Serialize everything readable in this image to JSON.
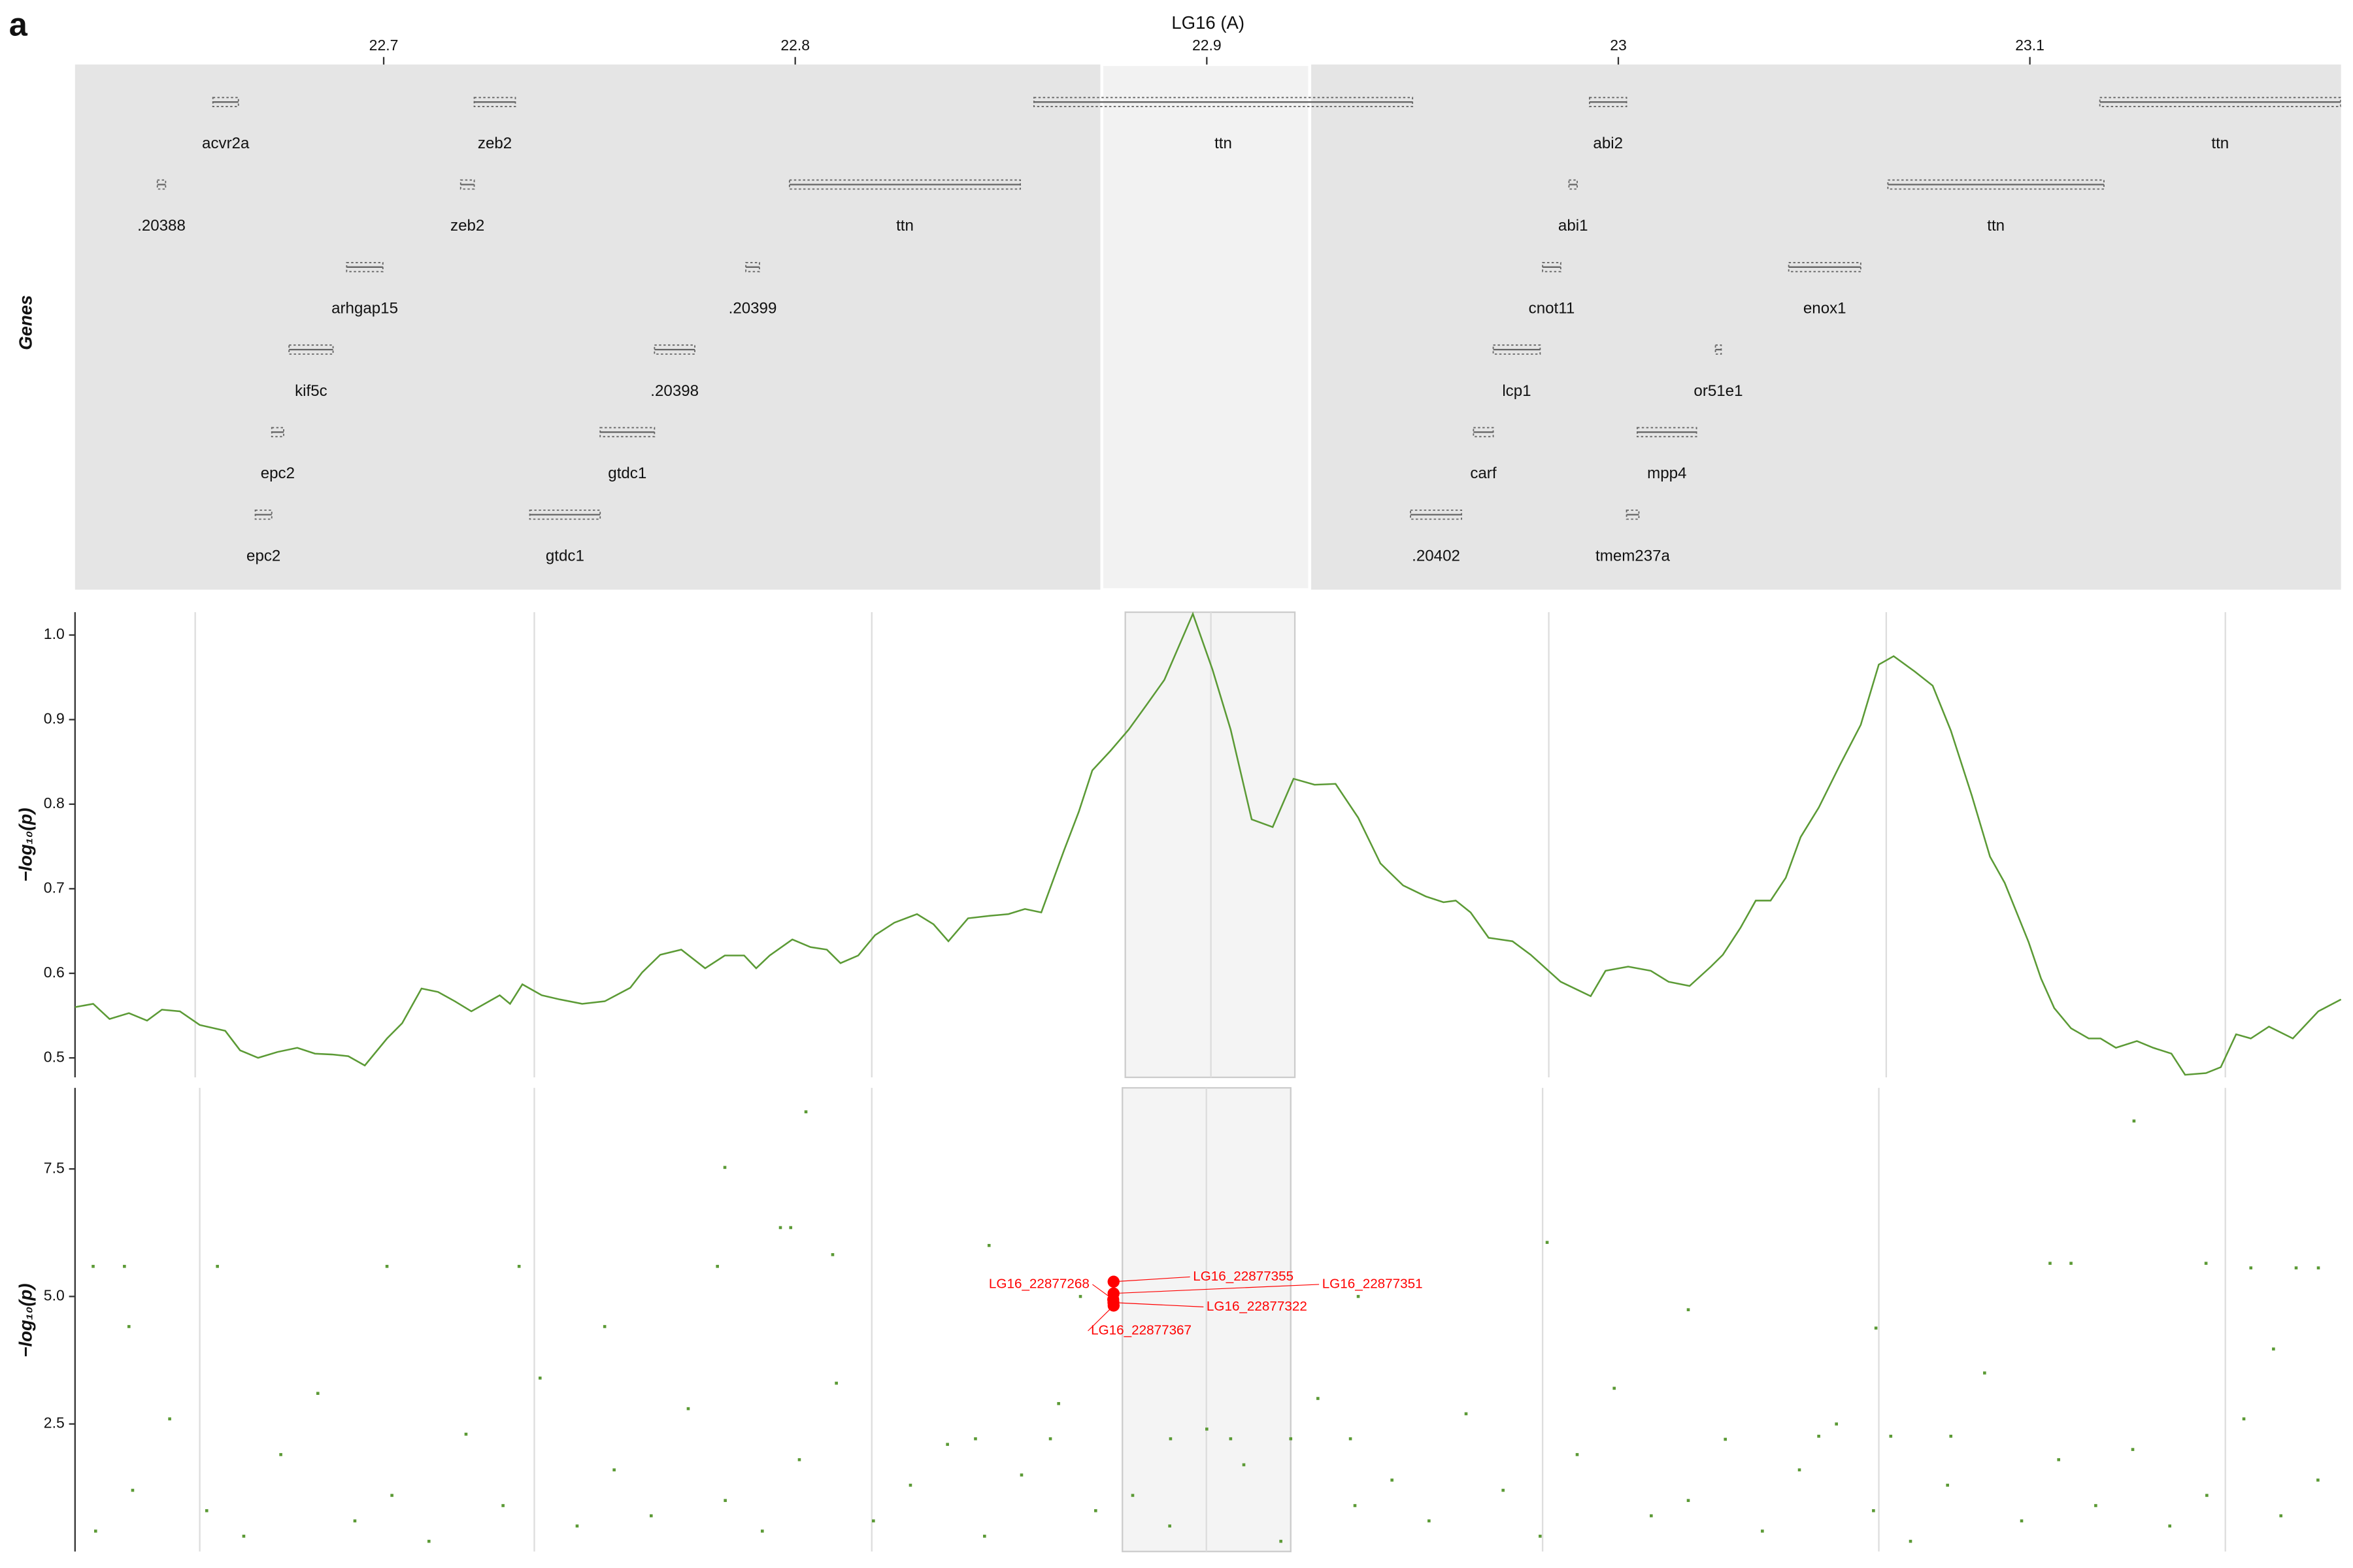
{
  "figure_label": "a",
  "chart_data": [
    {
      "type": "gene-track",
      "title": "LG16 (A)",
      "ylabel": "Genes",
      "xlim": [
        22.625,
        23.1756
      ],
      "xticks": [
        22.7,
        22.8,
        22.9,
        23,
        23.1
      ],
      "highlight": [
        22.8745,
        22.925
      ],
      "color": "#666666",
      "genes": [
        {
          "name": "acvr2a",
          "start": 22.6585,
          "end": 22.6647,
          "row": 0
        },
        {
          "name": "zeb2",
          "start": 22.722,
          "end": 22.732,
          "row": 0
        },
        {
          "name": "ttn",
          "start": 22.858,
          "end": 22.95,
          "row": 0
        },
        {
          "name": "abi2",
          "start": 22.993,
          "end": 23.002,
          "row": 0
        },
        {
          "name": "ttn",
          "start": 23.117,
          "end": 23.1755,
          "row": 0
        },
        {
          "name": ".20388",
          "start": 22.645,
          "end": 22.647,
          "row": 1
        },
        {
          "name": "zeb2",
          "start": 22.7187,
          "end": 22.722,
          "row": 1
        },
        {
          "name": "ttn",
          "start": 22.7986,
          "end": 22.8547,
          "row": 1
        },
        {
          "name": "abi1",
          "start": 22.988,
          "end": 22.99,
          "row": 1
        },
        {
          "name": "ttn",
          "start": 23.0655,
          "end": 23.118,
          "row": 1
        },
        {
          "name": "arhgap15",
          "start": 22.691,
          "end": 22.6998,
          "row": 2
        },
        {
          "name": ".20399",
          "start": 22.788,
          "end": 22.7913,
          "row": 2
        },
        {
          "name": "cnot11",
          "start": 22.9816,
          "end": 22.986,
          "row": 2
        },
        {
          "name": "enox1",
          "start": 23.0414,
          "end": 23.0589,
          "row": 2
        },
        {
          "name": "kif5c",
          "start": 22.677,
          "end": 22.6877,
          "row": 3
        },
        {
          "name": ".20398",
          "start": 22.7658,
          "end": 22.7756,
          "row": 3
        },
        {
          "name": "lcp1",
          "start": 22.9696,
          "end": 22.981,
          "row": 3
        },
        {
          "name": "or51e1",
          "start": 23.0236,
          "end": 23.025,
          "row": 3
        },
        {
          "name": "epc2",
          "start": 22.6728,
          "end": 22.6757,
          "row": 4
        },
        {
          "name": "gtdc1",
          "start": 22.7526,
          "end": 22.7658,
          "row": 4
        },
        {
          "name": "carf",
          "start": 22.9648,
          "end": 22.9696,
          "row": 4
        },
        {
          "name": "mpp4",
          "start": 23.0046,
          "end": 23.019,
          "row": 4
        },
        {
          "name": "epc2",
          "start": 22.6688,
          "end": 22.6728,
          "row": 5
        },
        {
          "name": "gtdc1",
          "start": 22.7355,
          "end": 22.7526,
          "row": 5
        },
        {
          "name": ".20402",
          "start": 22.9495,
          "end": 22.9619,
          "row": 5
        },
        {
          "name": "tmem237a",
          "start": 23.002,
          "end": 23.005,
          "row": 5
        }
      ]
    },
    {
      "type": "line",
      "ylabel": "−log₁₀(p)",
      "color": "#5b9a35",
      "xlim": [
        22.625,
        23.1756
      ],
      "ylim": [
        0.477,
        1.027
      ],
      "yticks": [
        0.5,
        0.6,
        0.7,
        0.8,
        0.9,
        {
          "value": 1,
          "label": "1.0"
        }
      ],
      "xgrid": [
        22.6542,
        22.7366,
        22.8186,
        22.901,
        22.9831,
        23.0651,
        23.1475
      ],
      "highlight": [
        22.8802,
        22.9214
      ],
      "x": [
        22.625,
        22.6294,
        22.6334,
        22.6381,
        22.6425,
        22.6461,
        22.6505,
        22.6553,
        22.6615,
        22.6651,
        22.6695,
        22.6742,
        22.679,
        22.6833,
        22.6877,
        22.6914,
        22.6954,
        22.7008,
        22.7045,
        22.7092,
        22.7132,
        22.7173,
        22.7213,
        22.7282,
        22.7307,
        22.7337,
        22.7384,
        22.7428,
        22.7482,
        22.7537,
        22.7599,
        22.7628,
        22.7672,
        22.7723,
        22.7781,
        22.7829,
        22.7876,
        22.7905,
        22.7938,
        22.7993,
        22.8037,
        22.8077,
        22.811,
        22.8153,
        22.8194,
        22.8241,
        22.8296,
        22.8336,
        22.8372,
        22.842,
        22.8474,
        22.8518,
        22.8558,
        22.8598,
        22.8653,
        22.8689,
        22.8722,
        22.8766,
        22.881,
        22.8853,
        22.8897,
        22.8966,
        22.9014,
        22.9058,
        22.9109,
        22.916,
        22.9211,
        22.9262,
        22.9313,
        22.9368,
        22.9422,
        22.9477,
        22.9532,
        22.9575,
        22.9605,
        22.9641,
        22.9685,
        22.9743,
        22.9787,
        22.986,
        22.9933,
        22.9969,
        23.0024,
        23.0079,
        23.0122,
        23.0173,
        23.0225,
        23.0254,
        23.0297,
        23.0334,
        23.037,
        23.0407,
        23.0443,
        23.0487,
        23.0538,
        23.0589,
        23.0633,
        23.0669,
        23.072,
        23.0764,
        23.0808,
        23.0859,
        23.0903,
        23.0939,
        23.0997,
        23.1027,
        23.1059,
        23.11,
        23.1143,
        23.1172,
        23.1209,
        23.126,
        23.13,
        23.1344,
        23.1377,
        23.1428,
        23.1464,
        23.1501,
        23.1537,
        23.1581,
        23.1639,
        23.1701,
        23.1756
      ],
      "values": [
        0.56,
        0.564,
        0.546,
        0.553,
        0.544,
        0.557,
        0.555,
        0.539,
        0.532,
        0.509,
        0.5,
        0.507,
        0.512,
        0.505,
        0.504,
        0.502,
        0.491,
        0.523,
        0.541,
        0.582,
        0.578,
        0.567,
        0.555,
        0.574,
        0.564,
        0.587,
        0.574,
        0.569,
        0.564,
        0.567,
        0.583,
        0.601,
        0.622,
        0.628,
        0.606,
        0.621,
        0.621,
        0.606,
        0.621,
        0.64,
        0.631,
        0.628,
        0.612,
        0.621,
        0.645,
        0.66,
        0.67,
        0.658,
        0.638,
        0.665,
        0.668,
        0.67,
        0.676,
        0.672,
        0.745,
        0.791,
        0.84,
        0.863,
        0.888,
        0.917,
        0.947,
        1.025,
        0.959,
        0.888,
        0.782,
        0.773,
        0.83,
        0.823,
        0.824,
        0.784,
        0.73,
        0.704,
        0.691,
        0.684,
        0.686,
        0.672,
        0.642,
        0.638,
        0.622,
        0.59,
        0.573,
        0.603,
        0.608,
        0.603,
        0.59,
        0.585,
        0.608,
        0.622,
        0.654,
        0.686,
        0.686,
        0.713,
        0.761,
        0.796,
        0.846,
        0.894,
        0.965,
        0.975,
        0.957,
        0.94,
        0.887,
        0.81,
        0.738,
        0.707,
        0.637,
        0.594,
        0.559,
        0.535,
        0.523,
        0.523,
        0.512,
        0.52,
        0.512,
        0.505,
        0.48,
        0.482,
        0.489,
        0.528,
        0.523,
        0.537,
        0.523,
        0.555,
        0.569
      ]
    },
    {
      "type": "scatter",
      "ylabel": "−log₁₀(p)",
      "color": "#5b9a35",
      "xlim": [
        22.625,
        23.1756
      ],
      "ylim": [
        0,
        9.09
      ],
      "yticks": [
        2.5,
        {
          "value": 5,
          "label": "5.0"
        },
        7.5
      ],
      "xgrid": [
        22.6553,
        22.7366,
        22.8186,
        22.8999,
        22.9816,
        23.0633,
        23.1475
      ],
      "highlight": [
        22.8795,
        22.9204
      ],
      "x": [
        22.6294,
        22.637,
        22.6381,
        22.6596,
        22.7008,
        22.7329,
        22.7537,
        22.7811,
        22.7829,
        22.7964,
        22.7989,
        22.8026,
        22.8091,
        22.8471,
        22.8693,
        22.9368,
        22.9827,
        23.017,
        23.1049,
        23.11,
        23.1253,
        23.1428,
        23.1537,
        23.1647,
        23.1701,
        23.1592,
        23.0626,
        23.0487,
        23.0662,
        23.0808,
        22.8912,
        22.9058,
        22.9204,
        22.9349,
        22.8438,
        22.862,
        22.63,
        22.639,
        22.648,
        22.657,
        22.666,
        22.675,
        22.684,
        22.693,
        22.702,
        22.711,
        22.72,
        22.729,
        22.738,
        22.747,
        22.756,
        22.765,
        22.774,
        22.783,
        22.792,
        22.801,
        22.81,
        22.819,
        22.828,
        22.837,
        22.846,
        22.855,
        22.864,
        22.873,
        22.882,
        22.891,
        22.9,
        22.909,
        22.918,
        22.927,
        22.936,
        22.945,
        22.954,
        22.963,
        22.972,
        22.981,
        22.99,
        22.999,
        23.008,
        23.017,
        23.026,
        23.035,
        23.044,
        23.053,
        23.062,
        23.071,
        23.08,
        23.089,
        23.098,
        23.107,
        23.116,
        23.125,
        23.134,
        23.143,
        23.152,
        23.161,
        23.17
      ],
      "values": [
        5.59,
        5.59,
        4.41,
        5.59,
        5.59,
        5.59,
        4.41,
        5.59,
        7.53,
        6.35,
        6.35,
        8.62,
        5.82,
        6.0,
        5.0,
        5.0,
        6.06,
        4.74,
        5.65,
        5.65,
        8.44,
        5.65,
        5.56,
        5.56,
        5.56,
        3.97,
        4.38,
        2.26,
        2.26,
        2.26,
        2.21,
        2.21,
        2.21,
        2.21,
        2.21,
        2.21,
        0.4,
        1.2,
        2.6,
        0.8,
        0.3,
        1.9,
        3.1,
        0.6,
        1.1,
        0.2,
        2.3,
        0.9,
        3.4,
        0.5,
        1.6,
        0.7,
        2.8,
        1.0,
        0.4,
        1.8,
        3.3,
        0.6,
        1.3,
        2.1,
        0.3,
        1.5,
        2.9,
        0.8,
        1.1,
        0.5,
        2.4,
        1.7,
        0.2,
        3.0,
        0.9,
        1.4,
        0.6,
        2.7,
        1.2,
        0.3,
        1.9,
        3.2,
        0.7,
        1.0,
        2.2,
        0.4,
        1.6,
        2.5,
        0.8,
        0.2,
        1.3,
        3.5,
        0.6,
        1.8,
        0.9,
        2.0,
        0.5,
        1.1,
        2.6,
        0.7,
        1.4
      ],
      "highlighted": {
        "color": "#ff0000",
        "labels": [
          "LG16_22877355",
          "LG16_22877351",
          "LG16_22877268",
          "LG16_22877322",
          "LG16_22877367"
        ],
        "x": [
          22.877355,
          22.877351,
          22.877268,
          22.877322,
          22.877367
        ],
        "values": [
          5.29,
          5.06,
          4.94,
          4.88,
          4.82
        ]
      }
    }
  ]
}
